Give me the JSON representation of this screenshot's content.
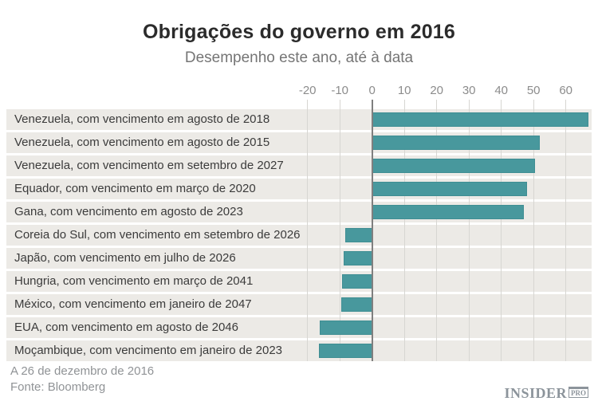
{
  "header": {
    "title": "Obrigações do governo em 2016",
    "subtitle": "Desempenho este ano, até à data"
  },
  "footer": {
    "date_note": "A 26 de dezembro de 2016",
    "source": "Fonte: Bloomberg",
    "logo_main": "INSIDER",
    "logo_suffix": "PRO"
  },
  "colors": {
    "bar": "#48989d",
    "row_stripe": "#eceae6",
    "gridline": "#d7d6d2",
    "zero_axis": "#7f7f7f",
    "title_text": "#2b2b2b",
    "subtitle_text": "#757575",
    "tick_label_text": "#8c8c8c",
    "row_label_text": "#3b3b3b",
    "footer_text": "#909396",
    "logo_text": "#8c949b"
  },
  "chart_data": {
    "type": "bar",
    "orientation": "horizontal",
    "title": "Obrigações do governo em 2016",
    "subtitle": "Desempenho este ano, até à data",
    "xlabel": "",
    "ylabel": "",
    "xlim": [
      -25,
      68
    ],
    "x_ticks": [
      -20,
      -10,
      0,
      10,
      20,
      30,
      40,
      50,
      60
    ],
    "grid": true,
    "legend": false,
    "categories": [
      "Venezuela, com vencimento em agosto de 2018",
      "Venezuela, com vencimento em agosto de 2015",
      "Venezuela, com vencimento em setembro de 2027",
      "Equador, com vencimento em março de 2020",
      "Gana, com vencimento em agosto de 2023",
      "Coreia do Sul, com vencimento em setembro de 2026",
      "Japão, com vencimento em julho de 2026",
      "Hungria, com vencimento em março de 2041",
      "México, com vencimento em janeiro de 2047",
      "EUA, com vencimento em agosto de 2046",
      "Moçambique, com vencimento em janeiro de 2023"
    ],
    "values": [
      67,
      52,
      50.5,
      48,
      47,
      -8.4,
      -8.8,
      -9.2,
      -9.5,
      -16.1,
      -16.4
    ],
    "footnotes": [
      "A 26 de dezembro de 2016",
      "Fonte: Bloomberg"
    ]
  }
}
